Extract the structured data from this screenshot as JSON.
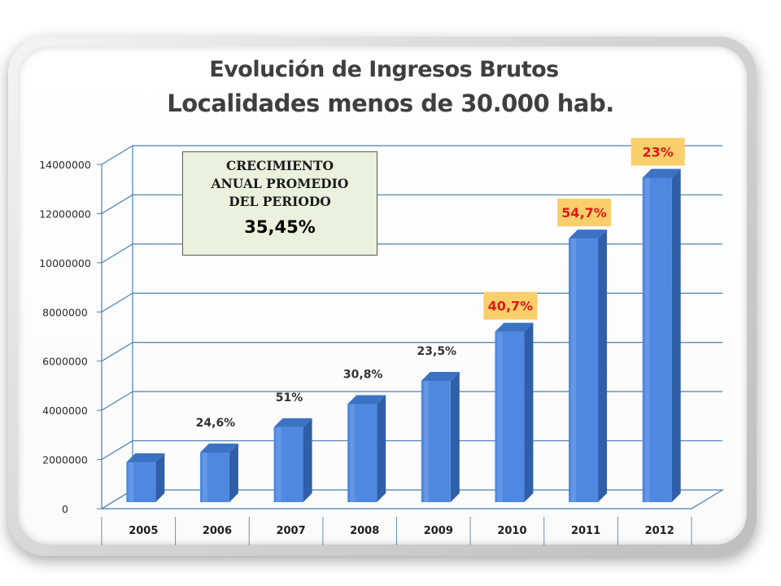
{
  "title_line1": "Evolución de Ingresos Brutos",
  "title_line2": "Localidades menos de 30.000 hab.",
  "growth_box": {
    "title_lines": [
      "CRECIMIENTO",
      "ANUAL PROMEDIO",
      "DEL PERIODO"
    ],
    "value": "35,45%"
  },
  "colors": {
    "bar": "#4f88e0",
    "highlight_label_bg": "#f8cf6b",
    "highlight_label_text": "#e0191a",
    "plain_label_text": "#333333",
    "grid": "#4a7fb0"
  },
  "chart_data": {
    "type": "bar",
    "style": "3d-column",
    "title": "Evolución de Ingresos Brutos Localidades menos de 30.000 hab.",
    "categories": [
      "2005",
      "2006",
      "2007",
      "2008",
      "2009",
      "2010",
      "2011",
      "2012"
    ],
    "values": [
      1620000,
      2020000,
      3050000,
      3990000,
      4930000,
      6930000,
      10720000,
      13190000
    ],
    "ylim": [
      0,
      14000000
    ],
    "yticks": [
      0,
      2000000,
      4000000,
      6000000,
      8000000,
      10000000,
      12000000,
      14000000
    ],
    "ytick_labels": [
      "0",
      "2000000",
      "4000000",
      "6000000",
      "8000000",
      "10000000",
      "12000000",
      "14000000"
    ],
    "grid": true,
    "legend": "none",
    "annotations": [
      {
        "category": "2006",
        "text": "24,6%",
        "highlight": false
      },
      {
        "category": "2007",
        "text": "51%",
        "highlight": false
      },
      {
        "category": "2008",
        "text": "30,8%",
        "highlight": false
      },
      {
        "category": "2009",
        "text": "23,5%",
        "highlight": false
      },
      {
        "category": "2010",
        "text": "40,7%",
        "highlight": true
      },
      {
        "category": "2011",
        "text": "54,7%",
        "highlight": true
      },
      {
        "category": "2012",
        "text": "23%",
        "highlight": true
      }
    ]
  }
}
